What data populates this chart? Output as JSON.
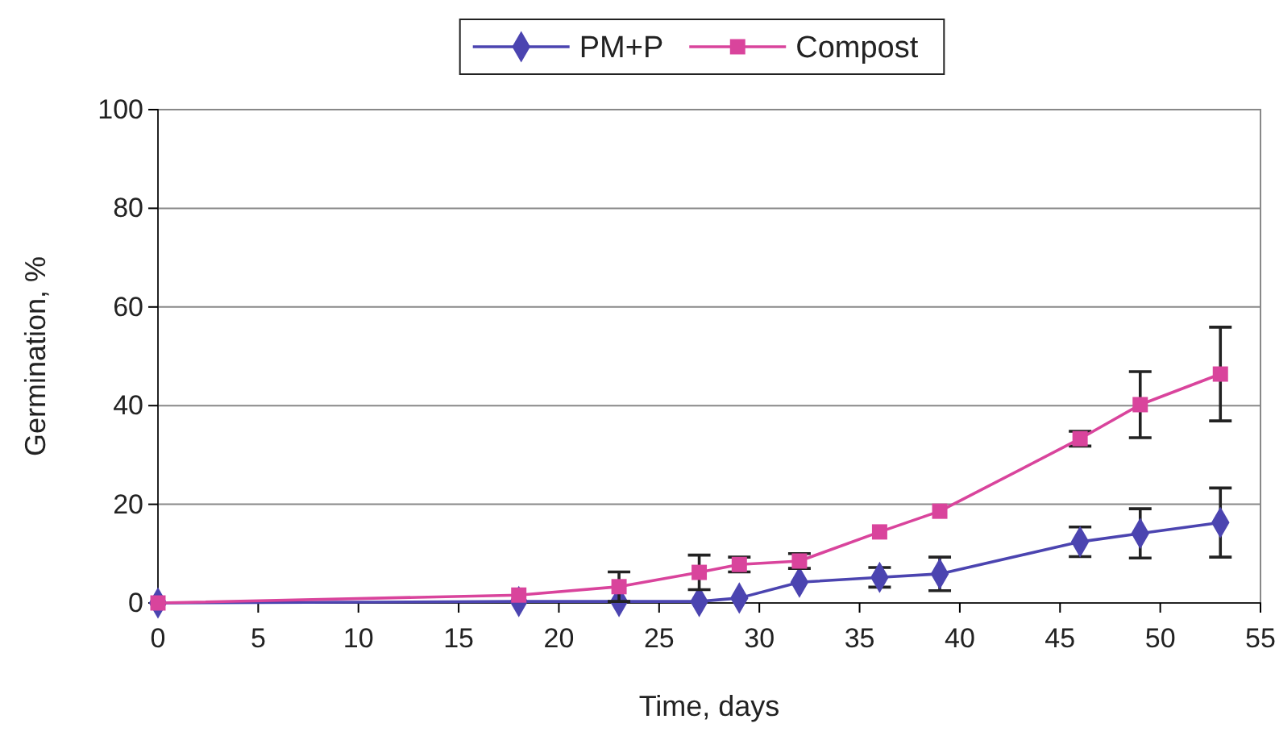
{
  "chart_data": {
    "type": "line",
    "xlabel": "Time, days",
    "ylabel": "Germination, %",
    "xlim": [
      0,
      55
    ],
    "xticks": [
      0,
      5,
      10,
      15,
      20,
      25,
      30,
      35,
      40,
      45,
      50,
      55
    ],
    "ylim": [
      0,
      100
    ],
    "yticks": [
      0,
      20,
      40,
      60,
      80,
      100
    ],
    "grid": "y",
    "legend": "top",
    "series": [
      {
        "name": "PM+P",
        "color": "#4b44b0",
        "marker": "diamond",
        "x": [
          0,
          18,
          23,
          27,
          29,
          32,
          36,
          39,
          46,
          49,
          53
        ],
        "values": [
          0,
          0.3,
          0.3,
          0.3,
          1,
          4.2,
          5.2,
          5.9,
          12.4,
          14.1,
          16.3
        ],
        "errors": [
          null,
          null,
          null,
          null,
          null,
          null,
          2,
          3.4,
          3,
          5,
          7
        ]
      },
      {
        "name": "Compost",
        "color": "#d9449c",
        "marker": "square",
        "x": [
          0,
          18,
          23,
          27,
          29,
          32,
          36,
          39,
          46,
          49,
          53
        ],
        "values": [
          0,
          1.6,
          3.3,
          6.2,
          7.8,
          8.5,
          14.4,
          18.6,
          33.3,
          40.2,
          46.4
        ],
        "errors": [
          null,
          null,
          3,
          3.5,
          1.5,
          1.5,
          null,
          null,
          1.5,
          6.7,
          9.5
        ]
      }
    ]
  }
}
